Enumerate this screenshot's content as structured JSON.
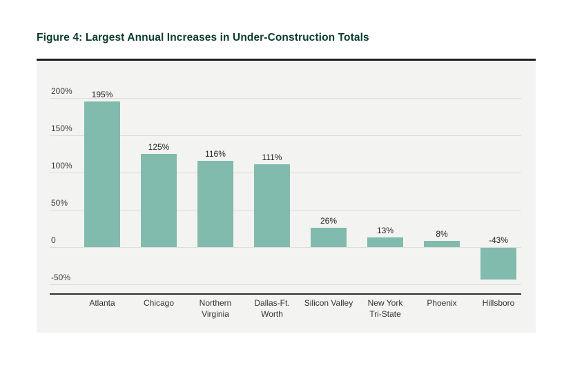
{
  "chart_data": {
    "type": "bar",
    "title": "Figure 4: Largest Annual Increases in Under-Construction Totals",
    "categories": [
      "Atlanta",
      "Chicago",
      "Northern Virginia",
      "Dallas-Ft. Worth",
      "Silicon Valley",
      "New York Tri-State",
      "Phoenix",
      "Hillsboro"
    ],
    "category_lines": [
      [
        "Atlanta"
      ],
      [
        "Chicago"
      ],
      [
        "Northern",
        "Virginia"
      ],
      [
        "Dallas-Ft.",
        "Worth"
      ],
      [
        "Silicon Valley"
      ],
      [
        "New York",
        "Tri-State"
      ],
      [
        "Phoenix"
      ],
      [
        "Hillsboro"
      ]
    ],
    "values": [
      195,
      125,
      116,
      111,
      26,
      13,
      8,
      -43
    ],
    "value_labels": [
      "195%",
      "125%",
      "116%",
      "111%",
      "26%",
      "13%",
      "8%",
      "-43%"
    ],
    "xlabel": "",
    "ylabel": "",
    "y_ticks": [
      {
        "value": 200,
        "label": "200%"
      },
      {
        "value": 150,
        "label": "150%"
      },
      {
        "value": 100,
        "label": "100%"
      },
      {
        "value": 50,
        "label": "50%"
      },
      {
        "value": 0,
        "label": "0"
      },
      {
        "value": -50,
        "label": "-50%"
      }
    ],
    "ylim": [
      -50,
      200
    ],
    "grid": true,
    "legend": false,
    "colors": {
      "bar": "#80BBAD",
      "title": "#0B3B2E",
      "grid": "#DDDEDB",
      "axis_line": "#2E312F",
      "panel_bg": "#F3F4F2",
      "top_rule": "#17211E",
      "label": "#333333"
    }
  }
}
